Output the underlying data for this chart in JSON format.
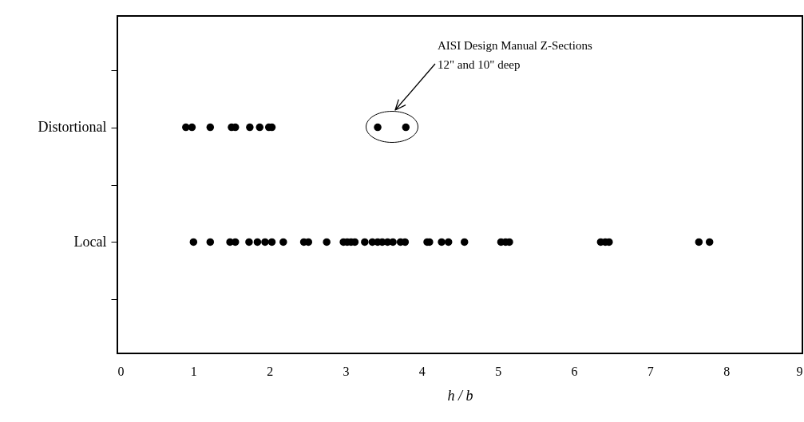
{
  "chart_data": {
    "type": "scatter",
    "orientation": "horizontal",
    "xlabel": "h / b",
    "xlim": [
      0,
      9
    ],
    "xticks": [
      0,
      1,
      2,
      3,
      4,
      5,
      6,
      7,
      8,
      9
    ],
    "categories": [
      null,
      "Distortional",
      null,
      "Local",
      null
    ],
    "grid": false,
    "legend": false,
    "marker": "circle",
    "series": [
      {
        "color": "#000000",
        "values": [
          0.9,
          0.98,
          1.22,
          1.5,
          1.55,
          1.74,
          1.87,
          1.99,
          2.03,
          3.42,
          3.79
        ],
        "x": [
          "Distortional",
          "Distortional",
          "Distortional",
          "Distortional",
          "Distortional",
          "Distortional",
          "Distortional",
          "Distortional",
          "Distortional",
          "Distortional",
          "Distortional"
        ]
      },
      {
        "color": "#000000",
        "values": [
          1.0,
          1.22,
          1.48,
          1.55,
          1.73,
          1.84,
          1.94,
          2.03,
          2.18,
          2.45,
          2.51,
          2.75,
          2.97,
          3.02,
          3.07,
          3.12,
          3.25,
          3.35,
          3.42,
          3.48,
          3.55,
          3.62,
          3.72,
          3.78,
          4.07,
          4.1,
          4.26,
          4.35,
          4.56,
          5.04,
          5.1,
          5.15,
          6.35,
          6.41,
          6.46,
          7.64,
          7.78
        ],
        "x": [
          "Local",
          "Local",
          "Local",
          "Local",
          "Local",
          "Local",
          "Local",
          "Local",
          "Local",
          "Local",
          "Local",
          "Local",
          "Local",
          "Local",
          "Local",
          "Local",
          "Local",
          "Local",
          "Local",
          "Local",
          "Local",
          "Local",
          "Local",
          "Local",
          "Local",
          "Local",
          "Local",
          "Local",
          "Local",
          "Local",
          "Local",
          "Local",
          "Local",
          "Local",
          "Local",
          "Local",
          "Local"
        ]
      }
    ],
    "annotations": [
      "AISI Design Manual Z-Sections\n12\" and 10\" deep"
    ]
  }
}
